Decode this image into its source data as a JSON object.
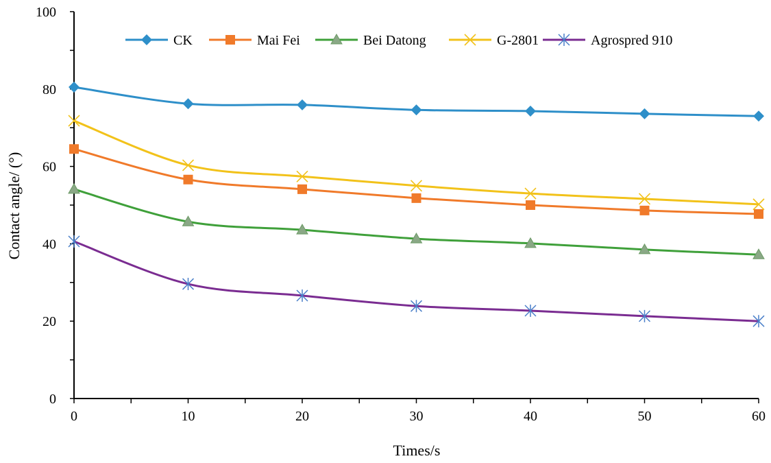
{
  "chart_data": {
    "type": "line",
    "title": "",
    "xlabel": "Times/s",
    "ylabel": "Contact angle/ (°)",
    "xlim": [
      0,
      60
    ],
    "ylim": [
      0,
      100
    ],
    "xticks": [
      0,
      10,
      20,
      30,
      40,
      50,
      60
    ],
    "yticks": [
      0,
      20,
      40,
      60,
      80,
      100
    ],
    "grid": false,
    "smooth": true,
    "legend_placement": "top",
    "x": [
      0,
      10,
      20,
      30,
      40,
      50,
      60
    ],
    "series": [
      {
        "name": "CK",
        "color": "#2e8fc9",
        "marker": "diamond",
        "values": [
          80.5,
          76.2,
          75.9,
          74.6,
          74.3,
          73.6,
          73.0
        ]
      },
      {
        "name": "Mai Fei",
        "color": "#f07a2a",
        "marker": "square",
        "values": [
          64.5,
          56.6,
          54.1,
          51.8,
          50.0,
          48.6,
          47.7
        ]
      },
      {
        "name": "Bei Datong",
        "color": "#3fa03a",
        "marker": "triangle",
        "values": [
          54.1,
          45.7,
          43.6,
          41.3,
          40.1,
          38.5,
          37.2
        ]
      },
      {
        "name": "G-2801",
        "color": "#f2c21a",
        "marker": "x",
        "values": [
          71.8,
          60.3,
          57.4,
          55.0,
          53.0,
          51.6,
          50.2
        ]
      },
      {
        "name": "Agrospred 910",
        "color": "#7a2c91",
        "marker": "star",
        "values": [
          40.6,
          29.6,
          26.6,
          23.9,
          22.7,
          21.3,
          20.0
        ]
      }
    ]
  }
}
